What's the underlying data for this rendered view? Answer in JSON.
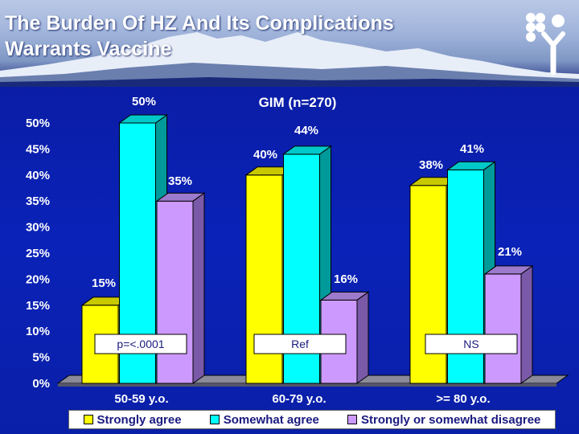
{
  "slide": {
    "title_line1": "The Burden Of HZ And Its Complications",
    "title_line2": "Warrants Vaccine"
  },
  "chart_data": {
    "type": "bar",
    "title": "GIM (n=270)",
    "categories": [
      "50-59 y.o.",
      "60-79 y.o.",
      ">= 80 y.o."
    ],
    "series": [
      {
        "name": "Strongly agree",
        "color": "#ffff00",
        "side": "#a8a800",
        "top": "#c8c800",
        "values": [
          15,
          40,
          38
        ]
      },
      {
        "name": "Somewhat agree",
        "color": "#00ffff",
        "side": "#009a9a",
        "top": "#00c8c8",
        "values": [
          50,
          44,
          41
        ]
      },
      {
        "name": "Strongly or somewhat disagree",
        "color": "#cc99ff",
        "side": "#7a5aa8",
        "top": "#9c7acc",
        "values": [
          35,
          16,
          21
        ]
      }
    ],
    "yticks": [
      "0%",
      "5%",
      "10%",
      "15%",
      "20%",
      "25%",
      "30%",
      "35%",
      "40%",
      "45%",
      "50%"
    ],
    "ylim": [
      0,
      50
    ],
    "grid": false,
    "legend_position": "bottom",
    "stat_labels": [
      "p=<.0001",
      "Ref",
      "NS"
    ]
  }
}
